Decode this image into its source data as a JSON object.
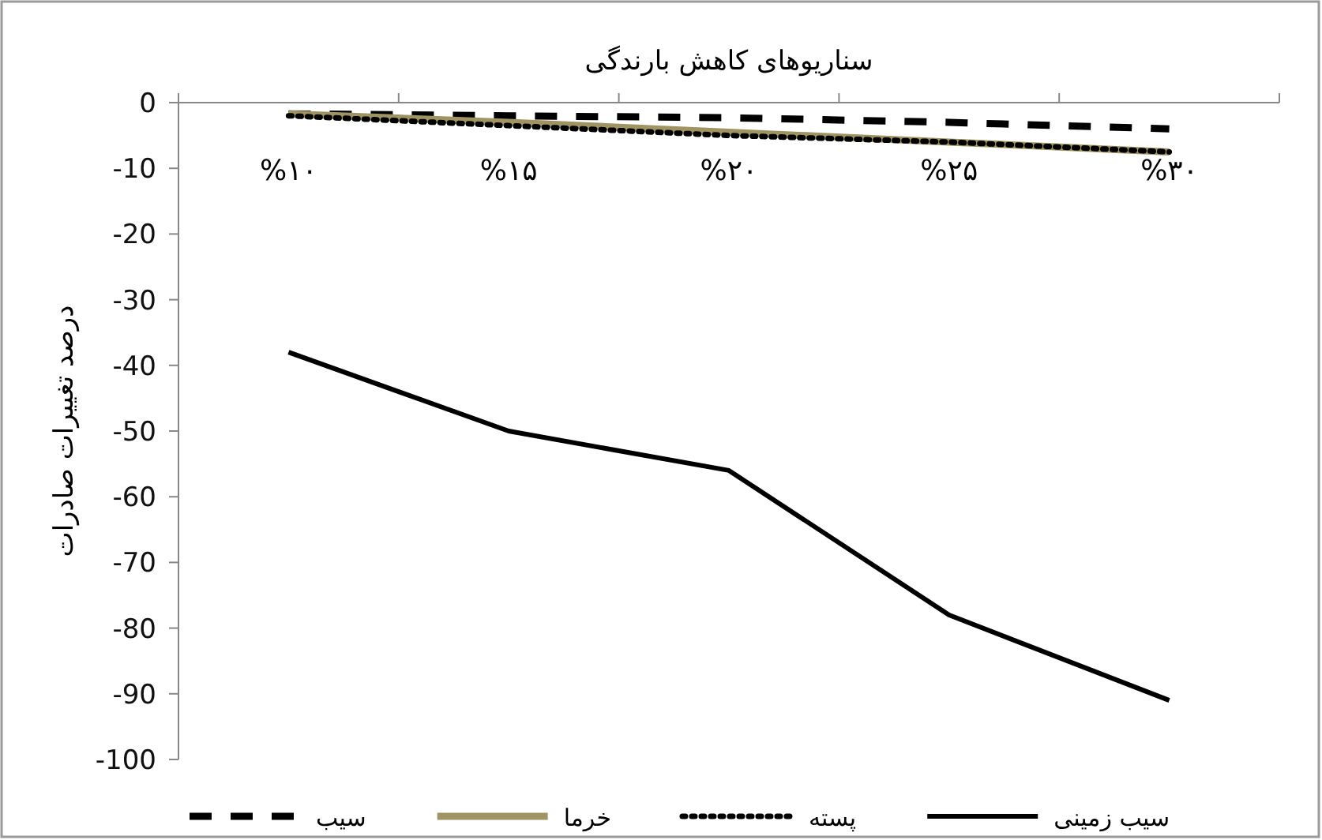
{
  "chart_data": {
    "type": "line",
    "title": "سناریوهای کاهش بارندگی",
    "ylabel": "درصد تغییرات صادرات",
    "categories": [
      "%۱۰",
      "%۱۵",
      "%۲۰",
      "%۲۵",
      "%۳۰"
    ],
    "series": [
      {
        "name": "سیب",
        "color": "#000000",
        "line_style": "dashed",
        "values": [
          -1.7,
          -2,
          -2.3,
          -3,
          -4
        ]
      },
      {
        "name": "خرما",
        "color": "#a09462",
        "line_style": "solid",
        "values": [
          -1.7,
          -3,
          -4.5,
          -6,
          -7.5
        ]
      },
      {
        "name": "پسته",
        "color": "#000000",
        "line_style": "dotted",
        "values": [
          -2,
          -3.5,
          -5,
          -6,
          -7.5
        ]
      },
      {
        "name": "سیب زمینی",
        "color": "#000000",
        "line_style": "solid",
        "values": [
          -38,
          -50,
          -56,
          -78,
          -91
        ]
      }
    ],
    "ylim": [
      -100,
      0
    ],
    "yticks": [
      0,
      -10,
      -20,
      -30,
      -40,
      -50,
      -60,
      -70,
      -80,
      -90,
      -100
    ],
    "grid": false,
    "legend": "bottom",
    "marker": "none"
  }
}
